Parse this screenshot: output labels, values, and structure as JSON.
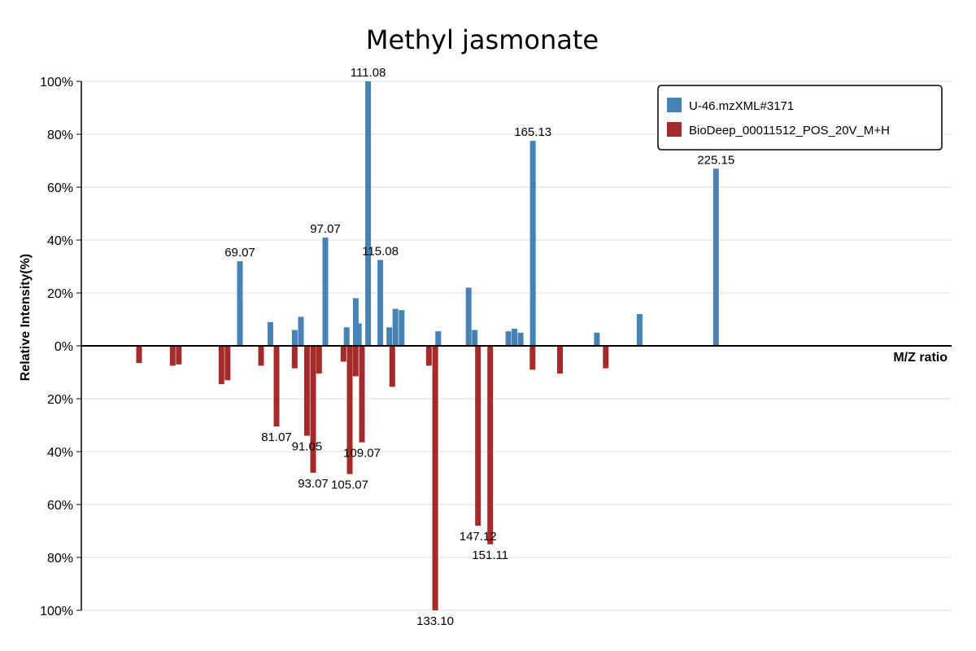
{
  "chart_data": {
    "type": "bar",
    "title": "Methyl jasmonate",
    "ylabel": "Relative Intensity(%)",
    "xlabel": "M/Z ratio",
    "ylim": [
      -100,
      100
    ],
    "y_ticks": [
      {
        "value": 100,
        "label": "100%"
      },
      {
        "value": 80,
        "label": "80%"
      },
      {
        "value": 60,
        "label": "60%"
      },
      {
        "value": 40,
        "label": "40%"
      },
      {
        "value": 20,
        "label": "20%"
      },
      {
        "value": 0,
        "label": "0%"
      },
      {
        "value": -20,
        "label": "20%"
      },
      {
        "value": -40,
        "label": "40%"
      },
      {
        "value": -60,
        "label": "60%"
      },
      {
        "value": -80,
        "label": "80%"
      },
      {
        "value": -100,
        "label": "100%"
      }
    ],
    "grid": true,
    "legend_position": "top-right",
    "series": [
      {
        "name": "U-46.mzXML#3171",
        "color": "#4682b4",
        "direction": "up",
        "peaks": [
          {
            "mz": 69.07,
            "value": 32,
            "label": "69.07"
          },
          {
            "mz": 79.05,
            "value": 9
          },
          {
            "mz": 87.04,
            "value": 6
          },
          {
            "mz": 89.06,
            "value": 11
          },
          {
            "mz": 97.07,
            "value": 41,
            "label": "97.07"
          },
          {
            "mz": 104.05,
            "value": 7
          },
          {
            "mz": 107.05,
            "value": 18
          },
          {
            "mz": 108.05,
            "value": 8.5
          },
          {
            "mz": 111.08,
            "value": 100,
            "label": "111.08"
          },
          {
            "mz": 115.08,
            "value": 32.5,
            "label": "115.08"
          },
          {
            "mz": 118.06,
            "value": 7
          },
          {
            "mz": 120.06,
            "value": 14
          },
          {
            "mz": 122.07,
            "value": 13.5
          },
          {
            "mz": 134.08,
            "value": 5.5
          },
          {
            "mz": 144.06,
            "value": 22
          },
          {
            "mz": 146.06,
            "value": 6
          },
          {
            "mz": 157.1,
            "value": 5.5
          },
          {
            "mz": 159.1,
            "value": 6.5
          },
          {
            "mz": 161.1,
            "value": 5
          },
          {
            "mz": 165.13,
            "value": 77.5,
            "label": "165.13"
          },
          {
            "mz": 186.1,
            "value": 5
          },
          {
            "mz": 200.1,
            "value": 12
          },
          {
            "mz": 225.15,
            "value": 67,
            "label": "225.15"
          }
        ]
      },
      {
        "name": "BioDeep_00011512_POS_20V_M+H",
        "color": "#a52a2a",
        "direction": "down",
        "peaks": [
          {
            "mz": 36.0,
            "value": 6.5
          },
          {
            "mz": 47.0,
            "value": 7.5
          },
          {
            "mz": 49.0,
            "value": 7
          },
          {
            "mz": 63.0,
            "value": 14.5
          },
          {
            "mz": 65.0,
            "value": 13
          },
          {
            "mz": 76.0,
            "value": 7.5
          },
          {
            "mz": 81.07,
            "value": 30.5,
            "label": "81.07"
          },
          {
            "mz": 87.0,
            "value": 8.5
          },
          {
            "mz": 91.05,
            "value": 34,
            "label": "91.05"
          },
          {
            "mz": 93.07,
            "value": 48,
            "label": "93.07"
          },
          {
            "mz": 95.0,
            "value": 10.5
          },
          {
            "mz": 103.0,
            "value": 6
          },
          {
            "mz": 105.07,
            "value": 48.5,
            "label": "105.07"
          },
          {
            "mz": 107.0,
            "value": 11.5
          },
          {
            "mz": 109.07,
            "value": 36.5,
            "label": "109.07"
          },
          {
            "mz": 119.0,
            "value": 15.5
          },
          {
            "mz": 131.0,
            "value": 7.5
          },
          {
            "mz": 133.1,
            "value": 100,
            "label": "133.10"
          },
          {
            "mz": 147.12,
            "value": 68,
            "label": "147.12"
          },
          {
            "mz": 151.11,
            "value": 75,
            "label": "151.11"
          },
          {
            "mz": 165.0,
            "value": 9
          },
          {
            "mz": 174.0,
            "value": 10.5
          },
          {
            "mz": 189.0,
            "value": 8.5
          }
        ]
      }
    ]
  }
}
